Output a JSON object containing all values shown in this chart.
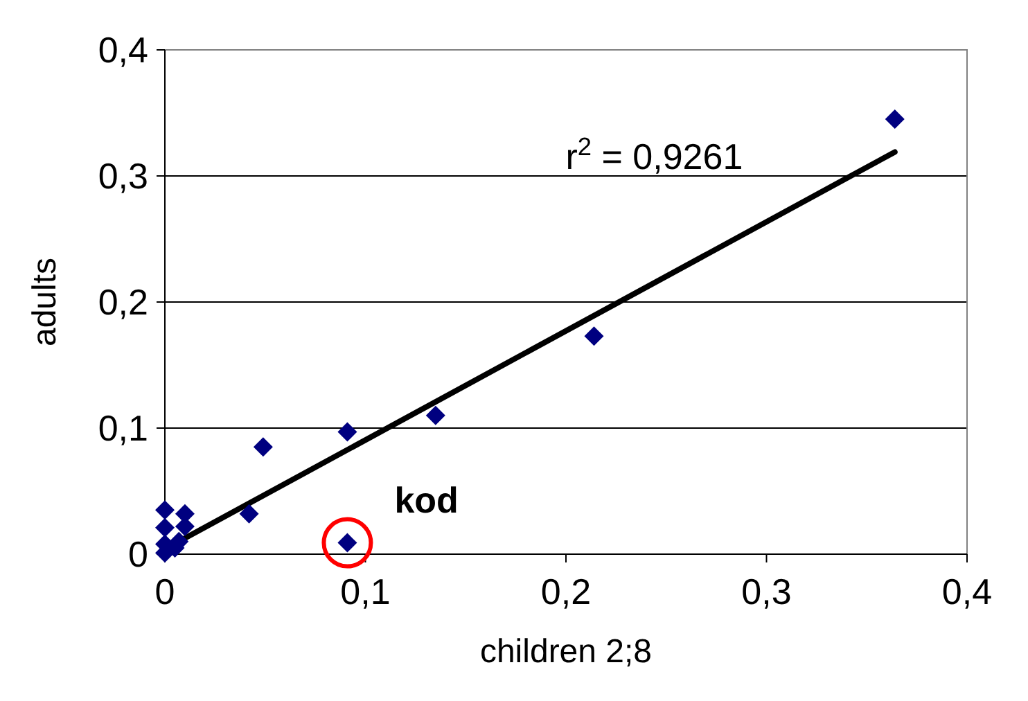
{
  "chart_data": {
    "type": "scatter",
    "xlabel": "children 2;8",
    "ylabel": "adults",
    "xlim": [
      0,
      0.4
    ],
    "ylim": [
      0,
      0.4
    ],
    "xticks": [
      {
        "value": 0,
        "label": "0"
      },
      {
        "value": 0.1,
        "label": "0,1"
      },
      {
        "value": 0.2,
        "label": "0,2"
      },
      {
        "value": 0.3,
        "label": "0,3"
      },
      {
        "value": 0.4,
        "label": "0,4"
      }
    ],
    "yticks": [
      {
        "value": 0,
        "label": "0"
      },
      {
        "value": 0.1,
        "label": "0,1"
      },
      {
        "value": 0.2,
        "label": "0,2"
      },
      {
        "value": 0.3,
        "label": "0,3"
      },
      {
        "value": 0.4,
        "label": "0,4"
      }
    ],
    "grid": "y",
    "series": [
      {
        "marker": "diamond",
        "color": "#000080",
        "x": [
          0.364,
          0.214,
          0.135,
          0.091,
          0.049,
          0.042,
          0.091,
          0,
          0.01,
          0,
          0.01,
          0,
          0.007,
          0,
          0.005
        ],
        "values": [
          0.345,
          0.173,
          0.11,
          0.097,
          0.085,
          0.032,
          0.009,
          0.035,
          0.032,
          0.021,
          0.022,
          0.008,
          0.01,
          0.001,
          0.005
        ]
      },
      {
        "type": "line",
        "color": "#000000",
        "x": [
          0,
          0.364
        ],
        "values": [
          0.004,
          0.319
        ]
      }
    ],
    "annotations": [
      "r$^{2}$ = 0,9261",
      {
        "text": "kod",
        "x": 0.091,
        "y": 0.009
      }
    ]
  }
}
